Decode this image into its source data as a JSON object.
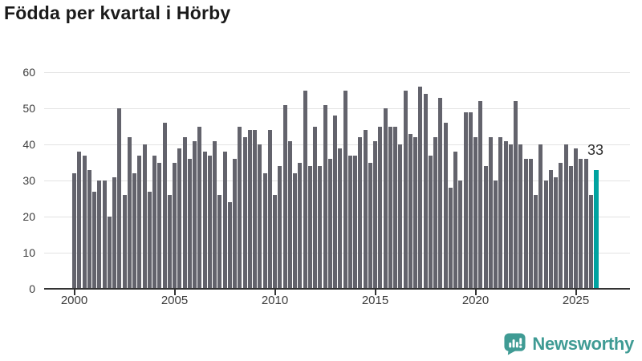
{
  "page": {
    "title": "Födda per kvartal i Hörby"
  },
  "chart_data": {
    "type": "bar",
    "title": "Födda per kvartal i Hörby",
    "frequency": "quarterly",
    "start_period": "2000-Q1",
    "values": [
      32,
      38,
      37,
      33,
      27,
      30,
      30,
      20,
      31,
      50,
      26,
      42,
      32,
      37,
      40,
      27,
      37,
      35,
      46,
      26,
      35,
      39,
      42,
      36,
      41,
      45,
      38,
      37,
      41,
      26,
      38,
      24,
      36,
      45,
      42,
      44,
      44,
      40,
      32,
      44,
      26,
      34,
      51,
      41,
      32,
      35,
      55,
      34,
      45,
      34,
      51,
      36,
      48,
      39,
      55,
      37,
      37,
      42,
      44,
      35,
      41,
      45,
      50,
      45,
      45,
      40,
      55,
      43,
      42,
      56,
      54,
      37,
      42,
      53,
      46,
      28,
      38,
      30,
      49,
      49,
      42,
      52,
      34,
      42,
      30,
      42,
      41,
      40,
      52,
      40,
      36,
      36,
      26,
      40,
      30,
      33,
      31,
      35,
      40,
      34,
      39,
      36,
      36,
      26,
      33
    ],
    "highlight_last": true,
    "highlight_last_value": 33,
    "annotation_label": "33",
    "ylim": [
      0,
      60
    ],
    "y_ticks": [
      0,
      10,
      20,
      30,
      40,
      50,
      60
    ],
    "x_tick_labels": [
      "2000",
      "2005",
      "2010",
      "2015",
      "2020",
      "2025"
    ],
    "x_tick_quarter_indices": [
      0,
      20,
      40,
      60,
      80,
      100
    ],
    "grid": true,
    "legend": "none",
    "colors": {
      "bar": "#63636c",
      "highlight": "#00a3a0",
      "grid": "#e3e3e3",
      "axis": "#333333",
      "tick_label": "#3c3c3c",
      "title": "#1a1a1a",
      "annotation": "#2d2d2d",
      "brand": "#3f9b94"
    }
  },
  "branding": {
    "logo_text": "Newsworthy"
  }
}
